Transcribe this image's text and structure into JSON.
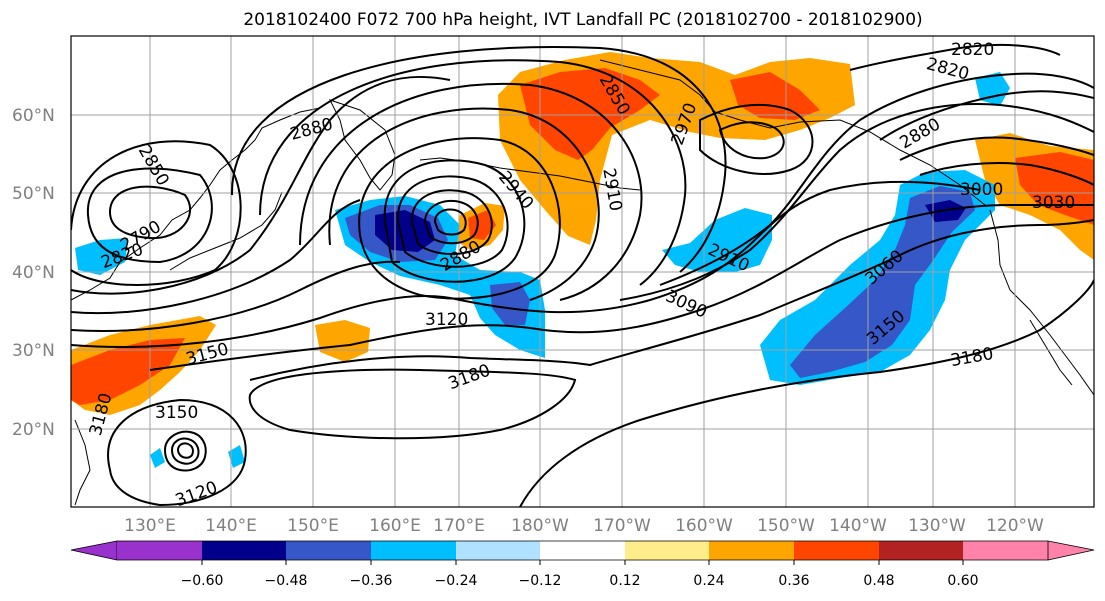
{
  "title": "2018102400 F072 700 hPa height, IVT Landfall PC (2018102700 - 2018102900)",
  "map": {
    "lon_labels": [
      "130°E",
      "140°E",
      "150°E",
      "160°E",
      "170°E",
      "180°W",
      "170°W",
      "160°W",
      "150°W",
      "140°W",
      "130°W",
      "120°W"
    ],
    "lat_labels": [
      "60°N",
      "50°N",
      "40°N",
      "30°N",
      "20°N"
    ],
    "contour_labels": [
      {
        "id": "c2820a",
        "text": "2820"
      },
      {
        "id": "c2820b",
        "text": "2820"
      },
      {
        "id": "c2820c",
        "text": "2820"
      },
      {
        "id": "c2850a",
        "text": "2850"
      },
      {
        "id": "c2850b",
        "text": "2850"
      },
      {
        "id": "c2880a",
        "text": "2880"
      },
      {
        "id": "c2880b",
        "text": "2880"
      },
      {
        "id": "c2880c",
        "text": "2880"
      },
      {
        "id": "c2910a",
        "text": "2910"
      },
      {
        "id": "c2910b",
        "text": "2910"
      },
      {
        "id": "c2940a",
        "text": "2940"
      },
      {
        "id": "c2970a",
        "text": "2970"
      },
      {
        "id": "c2790a",
        "text": "2790"
      },
      {
        "id": "c3000a",
        "text": "3000"
      },
      {
        "id": "c3030a",
        "text": "3030"
      },
      {
        "id": "c3060a",
        "text": "3060"
      },
      {
        "id": "c3090a",
        "text": "3090"
      },
      {
        "id": "c3120a",
        "text": "3120"
      },
      {
        "id": "c3120b",
        "text": "3120"
      },
      {
        "id": "c3150a",
        "text": "3150"
      },
      {
        "id": "c3150b",
        "text": "3150"
      },
      {
        "id": "c3150c",
        "text": "3150"
      },
      {
        "id": "c3180a",
        "text": "3180"
      },
      {
        "id": "c3180b",
        "text": "3180"
      },
      {
        "id": "c3180c",
        "text": "3180"
      }
    ]
  },
  "colorbar": {
    "colors": [
      "#9932cc",
      "#00008b",
      "#3657c8",
      "#00bfff",
      "#b0e2ff",
      "#ffffff",
      "#ffec8b",
      "#ffa500",
      "#ff4500",
      "#b22222",
      "#ff82ab"
    ],
    "tick_labels": [
      "−0.60",
      "−0.48",
      "−0.36",
      "−0.24",
      "−0.12",
      "0.12",
      "0.24",
      "0.36",
      "0.48",
      "0.60"
    ]
  }
}
